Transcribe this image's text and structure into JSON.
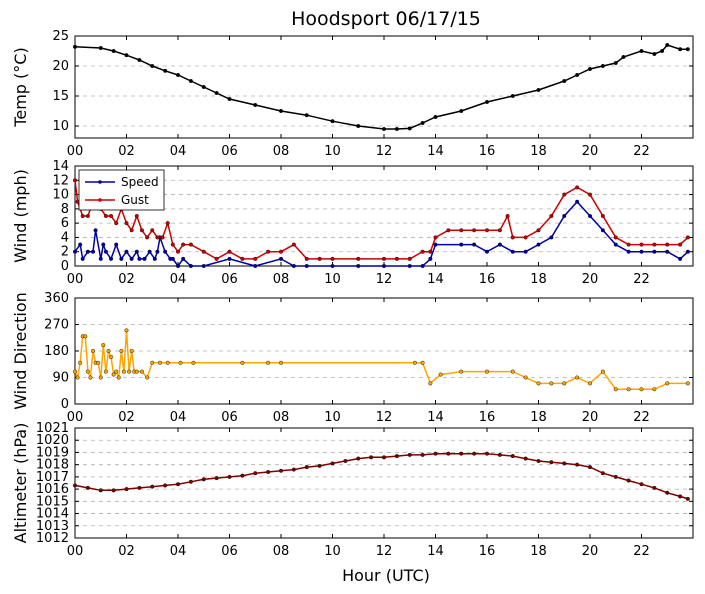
{
  "title": "Hoodsport 06/17/15",
  "x_label": "Hour (UTC)",
  "x_ticks": [
    "00",
    "02",
    "04",
    "06",
    "08",
    "10",
    "12",
    "14",
    "16",
    "18",
    "20",
    "22"
  ],
  "colors": {
    "temp": "#000000",
    "speed": "#0000aa",
    "gust": "#cc0000",
    "dir": "#ffa500",
    "alt": "#800000",
    "grid": "#b0b0b0"
  },
  "chart_data": [
    {
      "type": "line",
      "ylabel": "Temp ($^\\circ$C)",
      "ylabel_display": "Temp (°C)",
      "ylim": [
        8,
        25
      ],
      "yticks": [
        10,
        15,
        20,
        25
      ],
      "grid": true,
      "series": [
        {
          "name": "",
          "color": "#000000",
          "x": [
            0,
            1,
            1.5,
            2,
            2.5,
            3,
            3.5,
            4,
            4.5,
            5,
            5.5,
            6,
            7,
            8,
            9,
            10,
            11,
            12,
            12.5,
            13,
            13.5,
            14,
            15,
            16,
            17,
            18,
            19,
            19.5,
            20,
            20.5,
            21,
            21.3,
            22,
            22.5,
            22.8,
            23,
            23.5,
            23.8
          ],
          "y": [
            23.2,
            23,
            22.5,
            21.8,
            21,
            20,
            19.2,
            18.5,
            17.5,
            16.5,
            15.5,
            14.5,
            13.5,
            12.5,
            11.8,
            10.8,
            10,
            9.5,
            9.5,
            9.6,
            10.5,
            11.5,
            12.5,
            14,
            15,
            16,
            17.5,
            18.5,
            19.5,
            20,
            20.5,
            21.5,
            22.5,
            22,
            22.5,
            23.5,
            22.8,
            22.8
          ]
        }
      ]
    },
    {
      "type": "line",
      "ylabel": "Wind (mph)",
      "ylim": [
        0,
        14
      ],
      "yticks": [
        0,
        2,
        4,
        6,
        8,
        10,
        12,
        14
      ],
      "grid": true,
      "legend": "top-left",
      "series": [
        {
          "name": "Speed",
          "color": "#0000aa",
          "x": [
            0,
            0.2,
            0.3,
            0.5,
            0.7,
            0.8,
            1.0,
            1.1,
            1.2,
            1.4,
            1.6,
            1.8,
            2.0,
            2.2,
            2.4,
            2.5,
            2.7,
            2.9,
            3.1,
            3.2,
            3.3,
            3.5,
            3.7,
            3.8,
            4.0,
            4.2,
            4.5,
            5,
            6,
            7,
            8,
            8.5,
            9,
            10,
            11,
            12,
            13,
            13.5,
            13.8,
            14,
            15,
            15.5,
            16,
            16.5,
            17,
            17.5,
            18,
            18.5,
            19,
            19.5,
            20,
            20.5,
            21,
            21.5,
            22,
            22.5,
            23,
            23.5,
            23.8
          ],
          "y": [
            2,
            3,
            1,
            2,
            2,
            5,
            1,
            3,
            2,
            1,
            3,
            1,
            2,
            1,
            2,
            1,
            1,
            2,
            1,
            2,
            4,
            2,
            1,
            1,
            0,
            1,
            0,
            0,
            1,
            0,
            1,
            0,
            0,
            0,
            0,
            0,
            0,
            0,
            1,
            3,
            3,
            3,
            2,
            3,
            2,
            2,
            3,
            4,
            7,
            9,
            7,
            5,
            3,
            2,
            2,
            2,
            2,
            1,
            2
          ]
        },
        {
          "name": "Gust",
          "color": "#cc0000",
          "x": [
            0,
            0.1,
            0.3,
            0.5,
            0.7,
            1.0,
            1.2,
            1.4,
            1.6,
            1.8,
            2.0,
            2.2,
            2.4,
            2.6,
            2.8,
            3.0,
            3.2,
            3.4,
            3.6,
            3.8,
            4.0,
            4.2,
            4.5,
            5,
            5.5,
            6,
            6.5,
            7,
            7.5,
            8,
            8.5,
            9,
            9.5,
            10,
            11,
            12,
            12.5,
            13,
            13.5,
            13.8,
            14,
            14.5,
            15,
            15.5,
            16,
            16.5,
            16.8,
            17,
            17.5,
            18,
            18.5,
            19,
            19.5,
            20,
            20.5,
            21,
            21.5,
            22,
            22.5,
            23,
            23.5,
            23.8
          ],
          "y": [
            12,
            9,
            7,
            7,
            9,
            8,
            7,
            7,
            6,
            8,
            6,
            5,
            7,
            5,
            4,
            5,
            4,
            4,
            6,
            3,
            2,
            3,
            3,
            2,
            1,
            2,
            1,
            1,
            2,
            2,
            3,
            1,
            1,
            1,
            1,
            1,
            1,
            1,
            2,
            2,
            4,
            5,
            5,
            5,
            5,
            5,
            7,
            4,
            4,
            5,
            7,
            10,
            11,
            10,
            7,
            4,
            3,
            3,
            3,
            3,
            3,
            4
          ]
        }
      ]
    },
    {
      "type": "scatter",
      "ylabel": "Wind Direction",
      "ylim": [
        0,
        360
      ],
      "yticks": [
        0,
        90,
        180,
        270,
        360
      ],
      "grid": true,
      "series": [
        {
          "name": "",
          "color": "#ffa500",
          "x": [
            0,
            0.1,
            0.2,
            0.3,
            0.4,
            0.5,
            0.6,
            0.7,
            0.8,
            0.9,
            1.0,
            1.1,
            1.2,
            1.3,
            1.4,
            1.5,
            1.6,
            1.7,
            1.8,
            1.9,
            2.0,
            2.1,
            2.2,
            2.3,
            2.4,
            2.6,
            2.8,
            3.0,
            3.3,
            3.6,
            4.1,
            4.6,
            6.5,
            7.5,
            8.0,
            13.2,
            13.5,
            13.8,
            14.2,
            15,
            16,
            17,
            17.5,
            18,
            18.5,
            19,
            19.5,
            20,
            20.5,
            21,
            21.5,
            22,
            22.5,
            23,
            23.8
          ],
          "y": [
            110,
            90,
            140,
            230,
            230,
            110,
            90,
            180,
            140,
            140,
            90,
            200,
            110,
            180,
            160,
            100,
            110,
            90,
            180,
            110,
            250,
            110,
            180,
            110,
            110,
            110,
            90,
            140,
            140,
            140,
            140,
            140,
            140,
            140,
            140,
            140,
            140,
            70,
            100,
            110,
            110,
            110,
            90,
            70,
            70,
            70,
            90,
            70,
            110,
            50,
            50,
            50,
            50,
            70,
            70
          ]
        }
      ]
    },
    {
      "type": "line",
      "ylabel": "Altimeter (hPa)",
      "ylim": [
        1012,
        1021
      ],
      "yticks": [
        1012,
        1013,
        1014,
        1015,
        1016,
        1017,
        1018,
        1019,
        1020,
        1021
      ],
      "grid": true,
      "series": [
        {
          "name": "",
          "color": "#800000",
          "x": [
            0,
            0.5,
            1,
            1.5,
            2,
            2.5,
            3,
            3.5,
            4,
            4.5,
            5,
            5.5,
            6,
            6.5,
            7,
            7.5,
            8,
            8.5,
            9,
            9.5,
            10,
            10.5,
            11,
            11.5,
            12,
            12.5,
            13,
            13.5,
            14,
            14.5,
            15,
            15.5,
            16,
            16.5,
            17,
            17.5,
            18,
            18.5,
            19,
            19.5,
            20,
            20.5,
            21,
            21.5,
            22,
            22.5,
            23,
            23.5,
            23.8
          ],
          "y": [
            1016.3,
            1016.1,
            1015.9,
            1015.9,
            1016.0,
            1016.1,
            1016.2,
            1016.3,
            1016.4,
            1016.6,
            1016.8,
            1016.9,
            1017.0,
            1017.1,
            1017.3,
            1017.4,
            1017.5,
            1017.6,
            1017.8,
            1017.9,
            1018.1,
            1018.3,
            1018.5,
            1018.6,
            1018.6,
            1018.7,
            1018.8,
            1018.8,
            1018.9,
            1018.9,
            1018.9,
            1018.9,
            1018.9,
            1018.8,
            1018.7,
            1018.5,
            1018.3,
            1018.2,
            1018.1,
            1018.0,
            1017.8,
            1017.3,
            1017.0,
            1016.7,
            1016.4,
            1016.1,
            1015.7,
            1015.4,
            1015.2
          ]
        }
      ]
    }
  ]
}
